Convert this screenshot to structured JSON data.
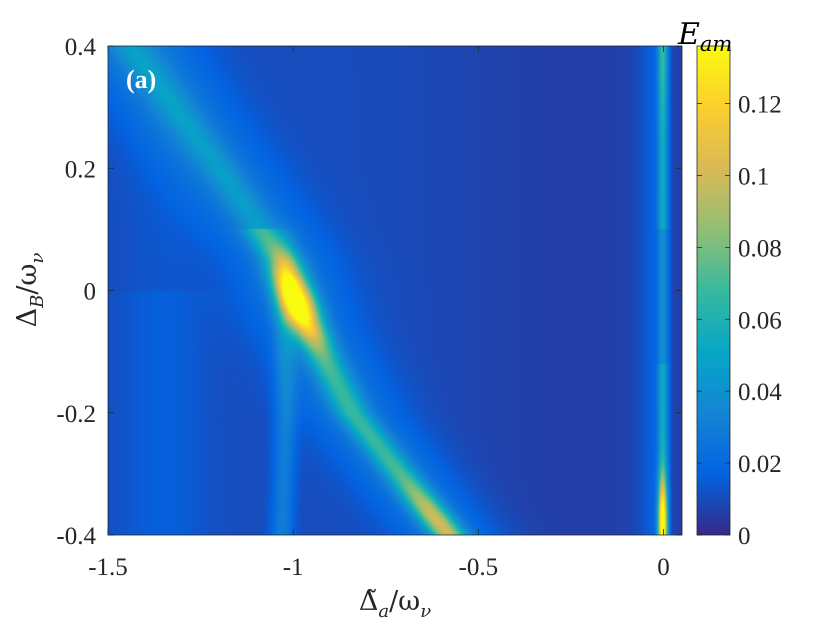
{
  "chart_data": {
    "type": "heatmap",
    "title": "",
    "panel_label": "(a)",
    "xlabel": "Δ̃a/ων",
    "ylabel": "ΔB/ων",
    "xlim": [
      -1.5,
      0.05
    ],
    "ylim": [
      -0.4,
      0.4
    ],
    "x_ticks": [
      {
        "value": -1.5,
        "label": "-1.5"
      },
      {
        "value": -1.0,
        "label": "-1"
      },
      {
        "value": -0.5,
        "label": "-0.5"
      },
      {
        "value": 0.0,
        "label": "0"
      }
    ],
    "y_ticks": [
      {
        "value": 0.4,
        "label": "0.4"
      },
      {
        "value": 0.2,
        "label": "0.2"
      },
      {
        "value": 0.0,
        "label": "0"
      },
      {
        "value": -0.2,
        "label": "-0.2"
      },
      {
        "value": -0.4,
        "label": "-0.4"
      }
    ],
    "colorbar": {
      "title": "Eam",
      "min": 0,
      "max": 0.136,
      "colormap": "parula",
      "ticks": [
        {
          "value": 0,
          "label": "0"
        },
        {
          "value": 0.02,
          "label": "0.02"
        },
        {
          "value": 0.04,
          "label": "0.04"
        },
        {
          "value": 0.06,
          "label": "0.06"
        },
        {
          "value": 0.08,
          "label": "0.08"
        },
        {
          "value": 0.1,
          "label": "0.1"
        },
        {
          "value": 0.12,
          "label": "0.12"
        }
      ]
    },
    "features": [
      {
        "name": "main-resonance",
        "description": "bright diagonal band from (-1.38, 0.35) to (-0.58, -0.4)",
        "x_at_y": [
          [
            0.35,
            -1.38
          ],
          [
            0.2,
            -1.2
          ],
          [
            0.05,
            -1.03
          ],
          [
            -0.05,
            -0.97
          ],
          [
            -0.2,
            -0.84
          ],
          [
            -0.4,
            -0.58
          ]
        ],
        "peak": {
          "x": -1.0,
          "y": -0.02,
          "value": 0.13
        }
      },
      {
        "name": "split-branch",
        "description": "secondary near-vertical band around x ≈ -1.02",
        "x_at_y": [
          [
            0.1,
            -1.02
          ],
          [
            -0.2,
            -1.02
          ],
          [
            -0.4,
            -1.03
          ]
        ]
      },
      {
        "name": "edge-resonance",
        "description": "narrow vertical band near x ≈ 0",
        "x": 0.0,
        "peak": {
          "x": 0.0,
          "y": -0.38,
          "value": 0.13
        }
      }
    ]
  },
  "colors": {
    "background": "#ffffff",
    "colormap_stops": [
      "#352a87",
      "#0363e1",
      "#1485d4",
      "#06a7c6",
      "#38b99e",
      "#92bf73",
      "#d9ba56",
      "#fcce2e",
      "#f9fb0e"
    ]
  }
}
